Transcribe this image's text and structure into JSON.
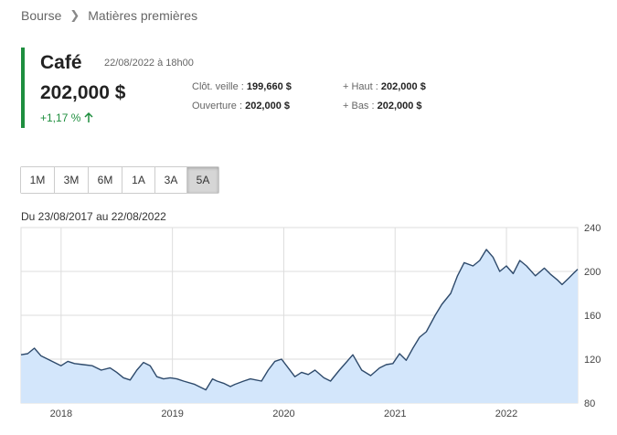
{
  "breadcrumb": {
    "items": [
      "Bourse",
      "Matières premières"
    ]
  },
  "quote": {
    "title": "Café",
    "date": "22/08/2022 à 18h00",
    "price": "202,000 $",
    "change": "+1,17 %",
    "change_direction_icon": "arrow-up-icon",
    "stats": {
      "prev_close_label": "Clôt. veille : ",
      "prev_close_value": "199,660 $",
      "open_label": "Ouverture : ",
      "open_value": "202,000 $",
      "high_label": "+ Haut : ",
      "high_value": "202,000 $",
      "low_label": "+ Bas : ",
      "low_value": "202,000 $"
    }
  },
  "periods": {
    "items": [
      "1M",
      "3M",
      "6M",
      "1A",
      "3A",
      "5A"
    ],
    "selected": "5A"
  },
  "range_label": "Du 23/08/2017 au 22/08/2022",
  "colors": {
    "accent_green": "#1e8e3e",
    "line": "#2e4a6b",
    "area_fill": "#d3e6fb"
  },
  "chart_data": {
    "type": "area",
    "ylim": [
      80,
      240
    ],
    "yticks": [
      80,
      120,
      160,
      200,
      240
    ],
    "xlim": [
      2017.64,
      2022.64
    ],
    "xticks": [
      {
        "value": 2018,
        "label": "2018"
      },
      {
        "value": 2019,
        "label": "2019"
      },
      {
        "value": 2020,
        "label": "2020"
      },
      {
        "value": 2021,
        "label": "2021"
      },
      {
        "value": 2022,
        "label": "2022"
      }
    ],
    "grid": true,
    "x": [
      2017.64,
      2017.7,
      2017.76,
      2017.82,
      2017.88,
      2017.94,
      2018.0,
      2018.06,
      2018.12,
      2018.2,
      2018.28,
      2018.36,
      2018.44,
      2018.5,
      2018.56,
      2018.62,
      2018.68,
      2018.74,
      2018.8,
      2018.86,
      2018.92,
      2018.98,
      2019.04,
      2019.1,
      2019.2,
      2019.3,
      2019.36,
      2019.4,
      2019.46,
      2019.52,
      2019.56,
      2019.64,
      2019.7,
      2019.8,
      2019.86,
      2019.92,
      2019.98,
      2020.04,
      2020.1,
      2020.16,
      2020.22,
      2020.28,
      2020.36,
      2020.42,
      2020.5,
      2020.56,
      2020.62,
      2020.7,
      2020.78,
      2020.86,
      2020.92,
      2020.98,
      2021.04,
      2021.1,
      2021.16,
      2021.22,
      2021.28,
      2021.36,
      2021.42,
      2021.5,
      2021.56,
      2021.62,
      2021.7,
      2021.76,
      2021.82,
      2021.88,
      2021.94,
      2022.0,
      2022.06,
      2022.12,
      2022.18,
      2022.26,
      2022.34,
      2022.4,
      2022.46,
      2022.5,
      2022.56,
      2022.6,
      2022.64
    ],
    "y": [
      124,
      125,
      130,
      123,
      120,
      117,
      114,
      118,
      116,
      115,
      114,
      110,
      112,
      108,
      103,
      101,
      110,
      117,
      114,
      104,
      102,
      103,
      102,
      100,
      97,
      92,
      102,
      100,
      98,
      95,
      97,
      100,
      102,
      100,
      110,
      118,
      120,
      112,
      104,
      108,
      106,
      110,
      103,
      100,
      110,
      117,
      124,
      110,
      105,
      112,
      115,
      116,
      125,
      119,
      130,
      140,
      145,
      160,
      170,
      180,
      196,
      208,
      205,
      210,
      220,
      213,
      200,
      205,
      198,
      210,
      205,
      196,
      203,
      197,
      192,
      188,
      194,
      198,
      202
    ]
  }
}
